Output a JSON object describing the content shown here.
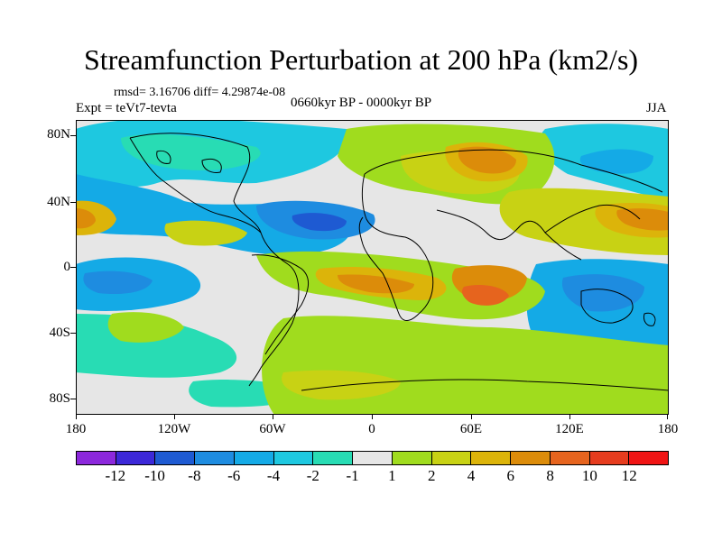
{
  "title": "Streamfunction Perturbation at 200 hPa (km2/s)",
  "stats": "rmsd= 3.16706 diff= 4.29874e-08",
  "experiment": "Expt = teVt7-tevta",
  "period": "0660kyr BP - 0000kyr BP",
  "season": "JJA",
  "lat_axis": [
    "80N",
    "40N",
    "0",
    "40S",
    "80S"
  ],
  "lon_axis": [
    "180",
    "120W",
    "60W",
    "0",
    "60E",
    "120E",
    "180"
  ],
  "colorbar": {
    "labels": [
      "-12",
      "-10",
      "-8",
      "-6",
      "-4",
      "-2",
      "-1",
      "1",
      "2",
      "4",
      "6",
      "8",
      "10",
      "12"
    ],
    "colors": [
      "#8c28dc",
      "#3c28d8",
      "#1e5ad2",
      "#1e8ce0",
      "#14aae6",
      "#1ec8e0",
      "#28dcb4",
      "#e6e6e6",
      "#a0dc1e",
      "#c8d214",
      "#dcb40a",
      "#dc8c0a",
      "#e6641e",
      "#e63c1e",
      "#f01414"
    ]
  },
  "colors": {
    "land_outline": "#000000",
    "background": "#e6e6e6"
  }
}
